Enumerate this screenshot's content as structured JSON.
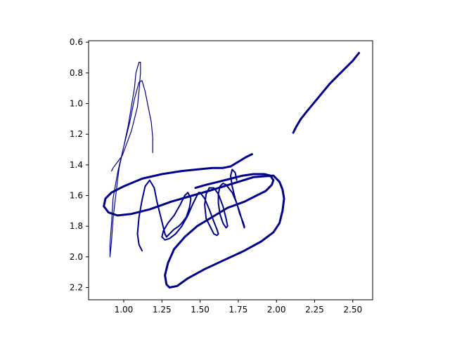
{
  "chart_data": {
    "type": "line",
    "title": "",
    "xlabel": "",
    "ylabel": "",
    "xlim": [
      0.77,
      2.63
    ],
    "ylim": [
      2.28,
      0.59
    ],
    "y_inverted": true,
    "grid": false,
    "legend": "none",
    "x_ticks": [
      1.0,
      1.25,
      1.5,
      1.75,
      2.0,
      2.25,
      2.5
    ],
    "x_tick_labels": [
      "1.00",
      "1.25",
      "1.50",
      "1.75",
      "2.00",
      "2.25",
      "2.50"
    ],
    "y_ticks": [
      0.6,
      0.8,
      1.0,
      1.2,
      1.4,
      1.6,
      1.8,
      2.0,
      2.2
    ],
    "y_tick_labels": [
      "0.6",
      "0.8",
      "1.0",
      "1.2",
      "1.4",
      "1.6",
      "1.8",
      "2.0",
      "2.2"
    ],
    "series": [
      {
        "color": "#00008b",
        "width": "thin",
        "x": [
          1.19,
          1.19,
          1.18,
          1.16,
          1.14,
          1.12,
          1.1,
          1.07,
          1.04,
          1.0,
          0.96,
          0.93,
          0.92,
          0.91,
          0.91,
          0.92,
          0.93,
          0.95,
          0.97,
          1.0,
          1.03,
          1.05,
          1.07,
          1.08,
          1.1,
          1.11,
          1.11,
          1.1,
          1.09,
          1.07,
          1.05,
          1.02,
          0.99,
          0.96,
          0.93,
          0.92
        ],
        "y": [
          1.32,
          1.22,
          1.12,
          1.02,
          0.92,
          0.85,
          0.86,
          0.97,
          1.12,
          1.28,
          1.45,
          1.62,
          1.78,
          1.92,
          2.0,
          1.9,
          1.75,
          1.58,
          1.42,
          1.28,
          1.14,
          1.02,
          0.9,
          0.8,
          0.73,
          0.73,
          0.8,
          0.92,
          1.02,
          1.1,
          1.18,
          1.26,
          1.34,
          1.38,
          1.42,
          1.44
        ]
      },
      {
        "color": "#00008b",
        "width": "medium",
        "x": [
          1.12,
          1.1,
          1.09,
          1.1,
          1.12,
          1.14,
          1.17,
          1.2,
          1.22,
          1.25,
          1.27,
          1.28,
          1.3,
          1.33,
          1.36,
          1.38,
          1.41,
          1.43,
          1.44,
          1.42,
          1.4,
          1.37,
          1.33,
          1.29,
          1.26,
          1.25,
          1.27,
          1.3,
          1.34,
          1.38,
          1.42,
          1.45,
          1.47,
          1.48,
          1.49,
          1.5,
          1.53,
          1.56,
          1.59,
          1.61,
          1.62,
          1.61,
          1.59,
          1.57,
          1.54,
          1.53,
          1.54,
          1.56,
          1.59,
          1.62,
          1.65,
          1.67,
          1.68,
          1.67,
          1.65,
          1.63,
          1.62,
          1.62,
          1.63,
          1.65,
          1.67,
          1.71,
          1.74,
          1.76,
          1.78,
          1.79,
          1.79,
          1.78,
          1.76,
          1.73,
          1.71,
          1.7,
          1.71,
          1.73,
          1.74
        ],
        "y": [
          1.96,
          1.92,
          1.85,
          1.74,
          1.63,
          1.54,
          1.5,
          1.55,
          1.65,
          1.77,
          1.85,
          1.87,
          1.85,
          1.82,
          1.8,
          1.78,
          1.74,
          1.68,
          1.62,
          1.58,
          1.6,
          1.66,
          1.73,
          1.78,
          1.83,
          1.87,
          1.89,
          1.88,
          1.85,
          1.8,
          1.73,
          1.66,
          1.62,
          1.6,
          1.58,
          1.58,
          1.62,
          1.69,
          1.77,
          1.82,
          1.85,
          1.86,
          1.85,
          1.81,
          1.75,
          1.66,
          1.59,
          1.55,
          1.55,
          1.59,
          1.67,
          1.75,
          1.8,
          1.81,
          1.78,
          1.72,
          1.65,
          1.59,
          1.54,
          1.52,
          1.53,
          1.58,
          1.65,
          1.72,
          1.77,
          1.8,
          1.81,
          1.78,
          1.71,
          1.62,
          1.54,
          1.47,
          1.43,
          1.45,
          1.5
        ]
      },
      {
        "color": "#00008b",
        "width": "thick",
        "x": [
          1.84,
          1.8,
          1.75,
          1.7,
          1.65,
          1.58,
          1.48,
          1.38,
          1.25,
          1.12,
          1.0,
          0.92,
          0.88,
          0.87,
          0.9,
          0.96,
          1.05,
          1.17,
          1.31,
          1.45,
          1.59,
          1.72,
          1.85,
          1.98,
          2.02,
          2.04,
          2.05,
          2.04,
          2.02,
          1.98,
          1.9,
          1.79,
          1.66,
          1.53,
          1.42,
          1.35,
          1.3,
          1.28,
          1.27,
          1.29,
          1.33,
          1.4,
          1.48,
          1.58,
          1.68,
          1.79,
          1.87,
          1.93,
          1.97,
          1.98,
          1.96,
          1.92,
          1.85,
          1.78,
          1.7,
          1.62,
          1.54,
          1.47
        ],
        "y": [
          1.33,
          1.35,
          1.38,
          1.41,
          1.42,
          1.42,
          1.43,
          1.44,
          1.46,
          1.49,
          1.54,
          1.58,
          1.62,
          1.67,
          1.71,
          1.73,
          1.72,
          1.69,
          1.64,
          1.6,
          1.56,
          1.52,
          1.48,
          1.47,
          1.51,
          1.56,
          1.62,
          1.7,
          1.78,
          1.84,
          1.9,
          1.96,
          2.02,
          2.08,
          2.14,
          2.19,
          2.2,
          2.18,
          2.12,
          2.04,
          1.95,
          1.87,
          1.8,
          1.74,
          1.68,
          1.64,
          1.6,
          1.57,
          1.53,
          1.5,
          1.47,
          1.46,
          1.46,
          1.47,
          1.49,
          1.51,
          1.53,
          1.55
        ]
      },
      {
        "color": "#00008b",
        "width": "thick",
        "x": [
          2.11,
          2.13,
          2.16,
          2.2,
          2.25,
          2.3,
          2.35,
          2.4,
          2.45,
          2.5,
          2.54
        ],
        "y": [
          1.19,
          1.15,
          1.1,
          1.05,
          0.99,
          0.93,
          0.87,
          0.82,
          0.77,
          0.72,
          0.67
        ]
      }
    ]
  }
}
